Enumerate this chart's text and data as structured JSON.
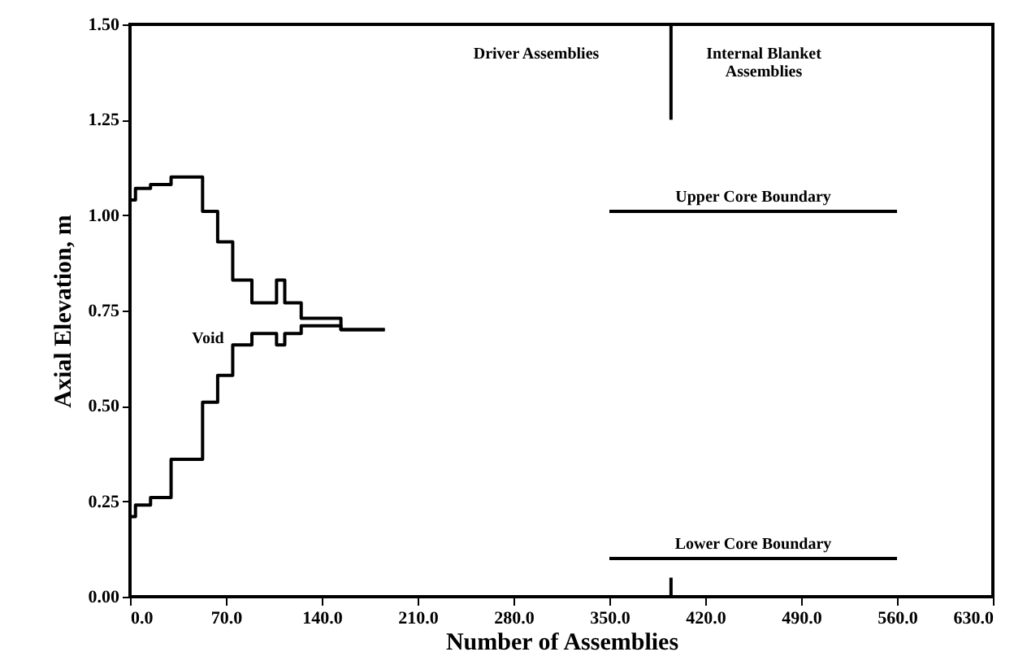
{
  "chart_data": {
    "type": "step",
    "xlabel": "Number of Assemblies",
    "ylabel": "Axial Elevation, m",
    "xlim": [
      0,
      630
    ],
    "ylim": [
      0,
      1.5
    ],
    "xticks": [
      {
        "value": 0,
        "label": "0.0"
      },
      {
        "value": 70,
        "label": "70.0"
      },
      {
        "value": 140,
        "label": "140.0"
      },
      {
        "value": 210,
        "label": "210.0"
      },
      {
        "value": 280,
        "label": "280.0"
      },
      {
        "value": 350,
        "label": "350.0"
      },
      {
        "value": 420,
        "label": "420.0"
      },
      {
        "value": 490,
        "label": "490.0"
      },
      {
        "value": 560,
        "label": "560.0"
      },
      {
        "value": 630,
        "label": "630.0"
      }
    ],
    "yticks": [
      {
        "value": 0,
        "label": "0.00"
      },
      {
        "value": 0.25,
        "label": "0.25"
      },
      {
        "value": 0.5,
        "label": "0.50"
      },
      {
        "value": 0.75,
        "label": "0.75"
      },
      {
        "value": 1,
        "label": "1.00"
      },
      {
        "value": 1.25,
        "label": "1.25"
      },
      {
        "value": 1.5,
        "label": "1.50"
      }
    ],
    "grid": false,
    "series": [
      {
        "color": "#000000",
        "x": [
          0,
          4,
          15,
          30,
          53,
          64,
          75,
          89,
          107,
          113,
          125,
          154,
          186
        ],
        "values": [
          1.04,
          1.07,
          1.08,
          1.1,
          1.01,
          0.93,
          0.83,
          0.77,
          0.83,
          0.77,
          0.73,
          0.7,
          0.7
        ]
      },
      {
        "color": "#000000",
        "x": [
          0,
          4,
          15,
          30,
          53,
          64,
          75,
          89,
          107,
          113,
          125,
          154,
          186
        ],
        "values": [
          0.21,
          0.24,
          0.26,
          0.36,
          0.51,
          0.58,
          0.66,
          0.69,
          0.66,
          0.69,
          0.71,
          0.7,
          0.7
        ]
      },
      {
        "type": "line",
        "color": "#000000",
        "x": [
          350,
          560
        ],
        "values": [
          1.01,
          1.01
        ]
      },
      {
        "type": "line",
        "color": "#000000",
        "x": [
          350,
          560
        ],
        "values": [
          0.1,
          0.1
        ]
      },
      {
        "type": "line",
        "color": "#000000",
        "x": [
          395,
          395
        ],
        "values": [
          1.25,
          1.5
        ]
      },
      {
        "type": "line",
        "color": "#000000",
        "x": [
          395,
          395
        ],
        "values": [
          0,
          0.05
        ]
      }
    ],
    "annotations": [
      "Void",
      "Driver Assemblies",
      "Internal Blanket\nAssemblies",
      {
        "text": "Upper Core Boundary",
        "x": 455,
        "y": 1.01
      },
      {
        "text": "Lower Core Boundary",
        "x": 455,
        "y": 0.1
      }
    ]
  }
}
